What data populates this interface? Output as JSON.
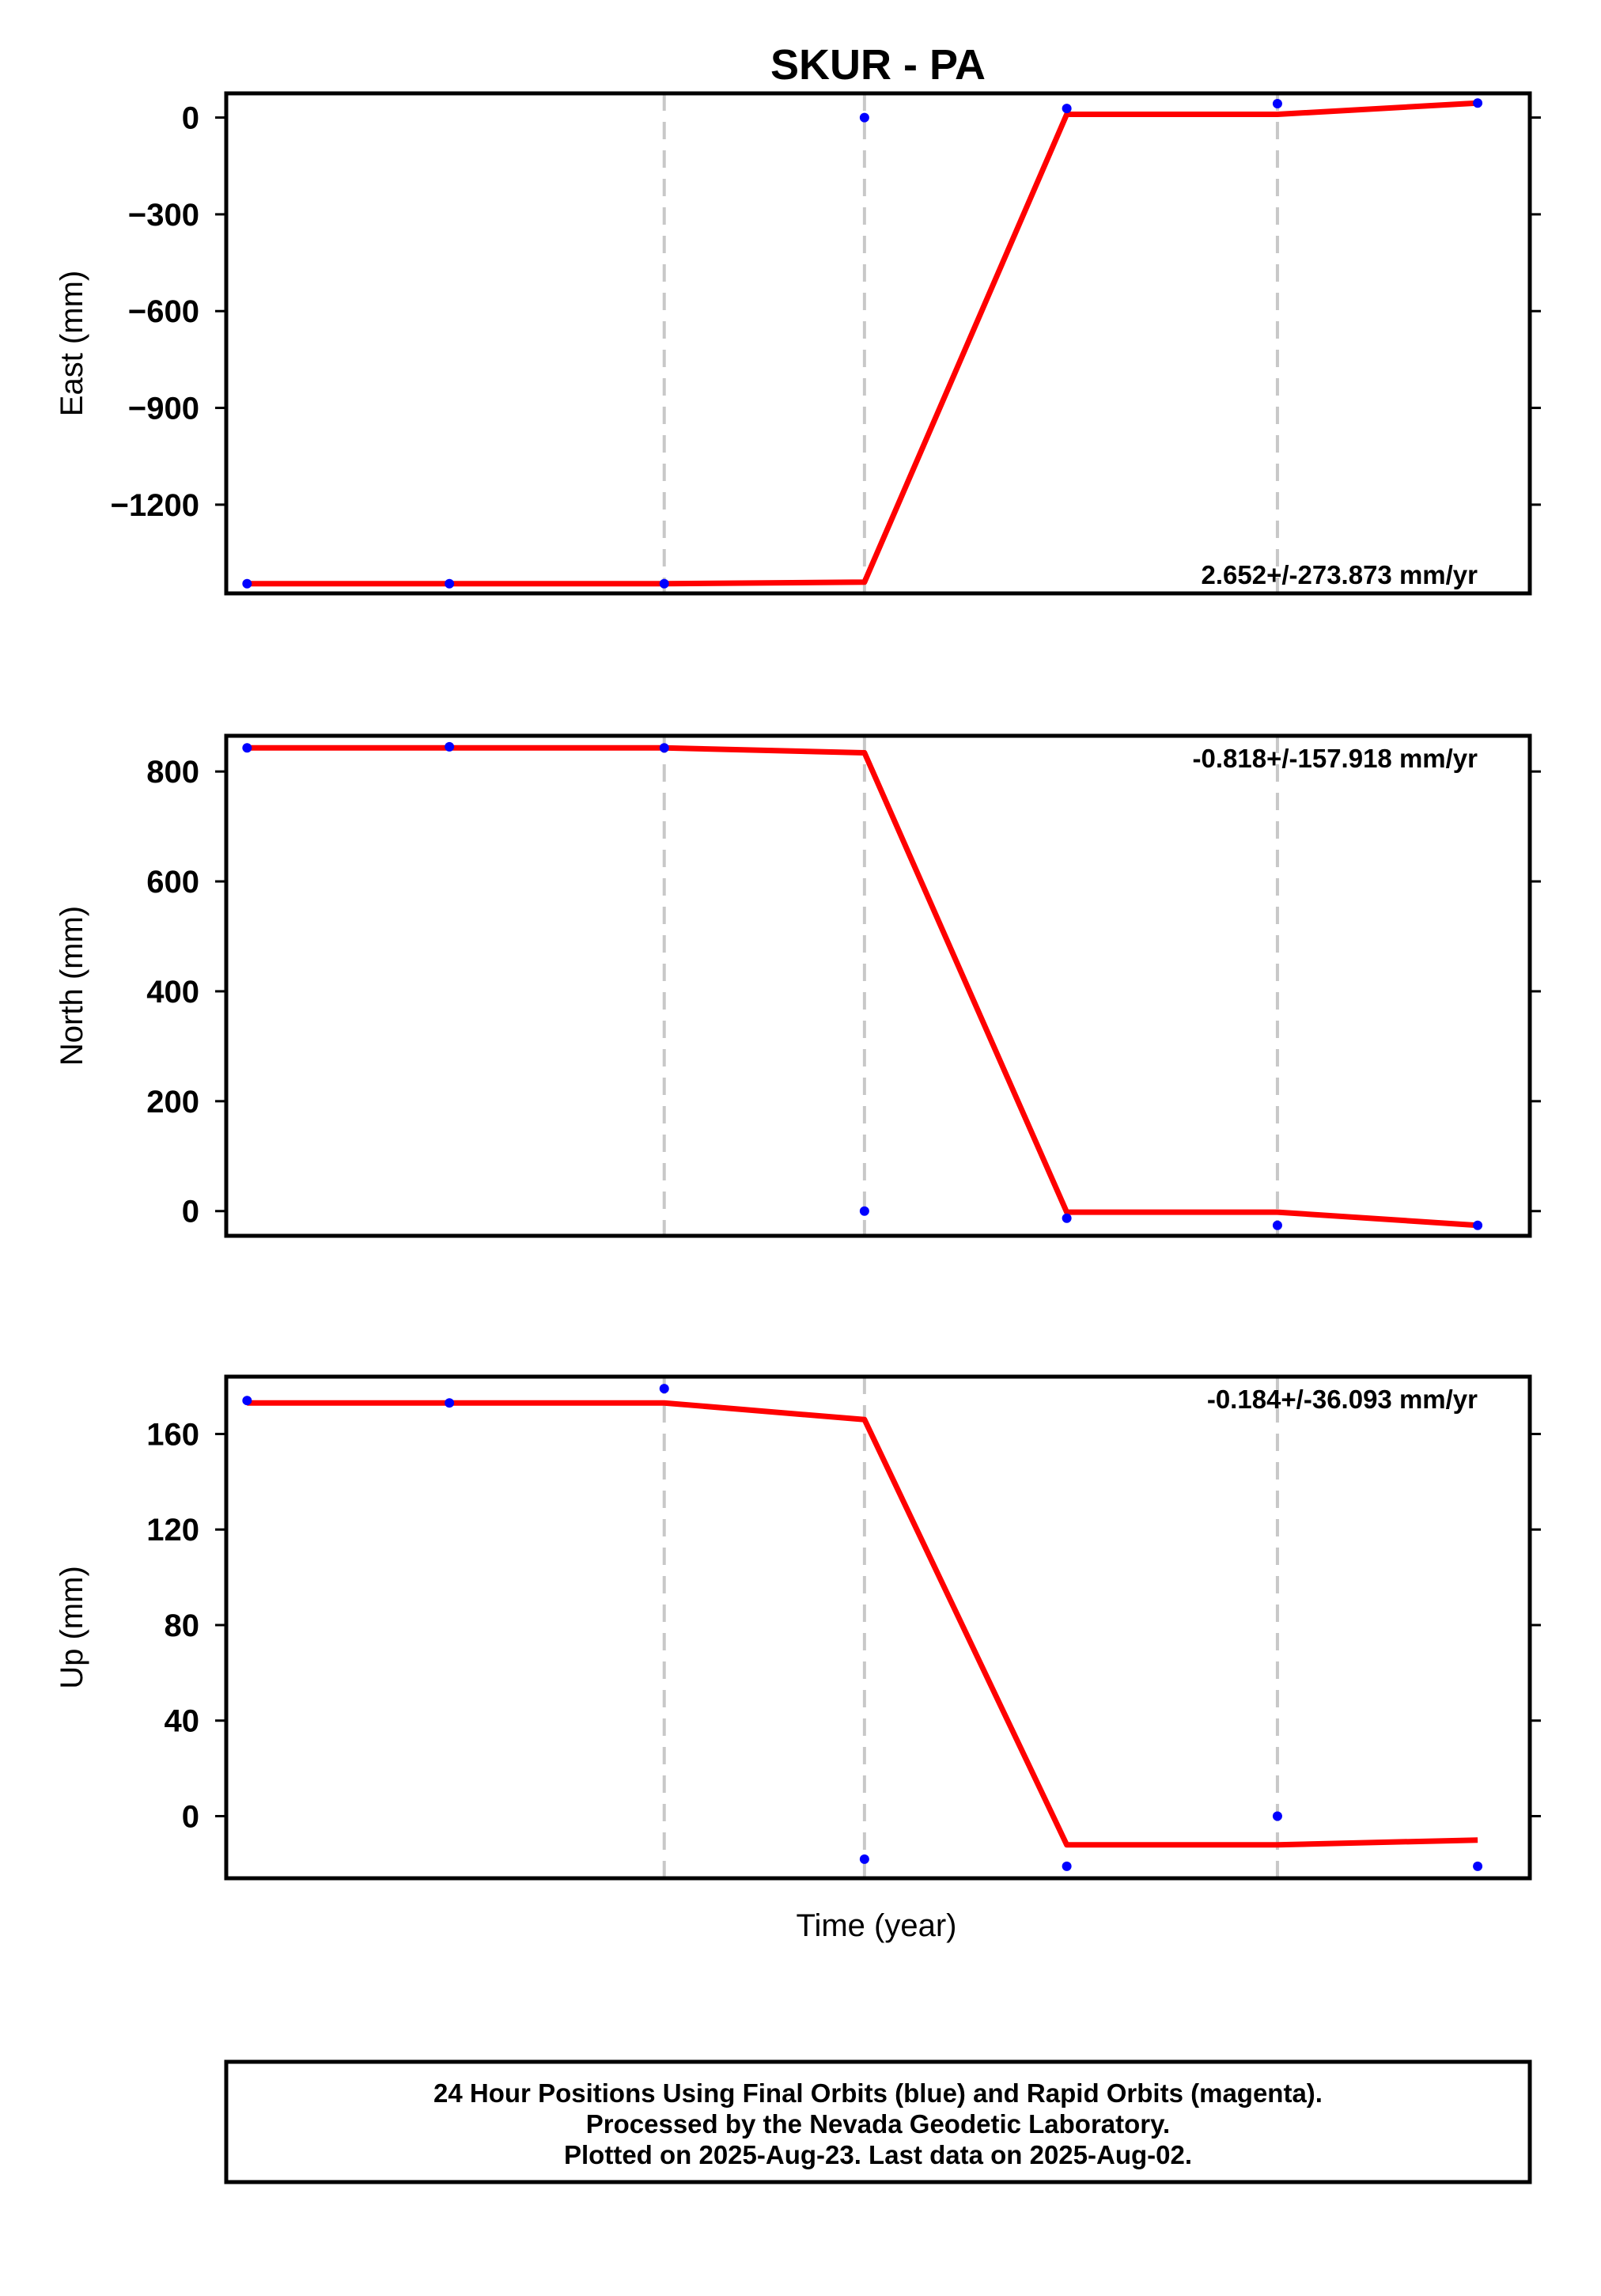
{
  "chart_data": {
    "type": "scatter",
    "title": "SKUR - PA",
    "xlabel": "Time (year)",
    "xlim": [
      0,
      6.25
    ],
    "vertical_dashed_lines_x": [
      2.1,
      3.06,
      5.04
    ],
    "grid": false,
    "panels": [
      {
        "id": "east",
        "ylabel": "East (mm)",
        "ylim": [
          -1475,
          75
        ],
        "yticks": [
          0,
          -300,
          -600,
          -900,
          -1200
        ],
        "ytick_labels": [
          "0",
          "−300",
          "−600",
          "−900",
          "−1200"
        ],
        "rate_text": "2.652+/-273.873 mm/yr",
        "rate_position": "bottom-right",
        "points": [
          [
            0.1,
            -1445
          ],
          [
            1.07,
            -1445
          ],
          [
            2.1,
            -1445
          ],
          [
            3.06,
            0
          ],
          [
            4.03,
            28
          ],
          [
            5.04,
            43
          ],
          [
            6.0,
            45
          ]
        ],
        "fit_line": [
          [
            0.1,
            -1445
          ],
          [
            2.1,
            -1445
          ],
          [
            3.06,
            -1440
          ],
          [
            4.03,
            10
          ],
          [
            5.04,
            10
          ],
          [
            6.0,
            45
          ]
        ]
      },
      {
        "id": "north",
        "ylabel": "North (mm)",
        "ylim": [
          -45,
          865
        ],
        "yticks": [
          0,
          200,
          400,
          600,
          800
        ],
        "ytick_labels": [
          "0",
          "200",
          "400",
          "600",
          "800"
        ],
        "rate_text": "-0.818+/-157.918 mm/yr",
        "rate_position": "top-right",
        "points": [
          [
            0.1,
            843
          ],
          [
            1.07,
            845
          ],
          [
            2.1,
            843
          ],
          [
            3.06,
            0
          ],
          [
            4.03,
            -13
          ],
          [
            5.04,
            -26
          ],
          [
            6.0,
            -26
          ]
        ],
        "fit_line": [
          [
            0.1,
            843
          ],
          [
            2.1,
            843
          ],
          [
            3.06,
            834
          ],
          [
            4.03,
            -2
          ],
          [
            5.04,
            -2
          ],
          [
            6.0,
            -26
          ]
        ]
      },
      {
        "id": "up",
        "ylabel": "Up (mm)",
        "ylim": [
          -26,
          184
        ],
        "yticks": [
          0,
          40,
          80,
          120,
          160
        ],
        "ytick_labels": [
          "0",
          "40",
          "80",
          "120",
          "160"
        ],
        "rate_text": "-0.184+/-36.093 mm/yr",
        "rate_position": "top-right",
        "points": [
          [
            0.1,
            174
          ],
          [
            1.07,
            173
          ],
          [
            2.1,
            179
          ],
          [
            3.06,
            -18
          ],
          [
            4.03,
            -21
          ],
          [
            5.04,
            0
          ],
          [
            6.0,
            -21
          ]
        ],
        "fit_line": [
          [
            0.1,
            173
          ],
          [
            2.1,
            173
          ],
          [
            3.06,
            166
          ],
          [
            4.03,
            -12
          ],
          [
            5.04,
            -12
          ],
          [
            6.0,
            -10
          ]
        ]
      }
    ],
    "point_color": "#0000ff",
    "line_color": "#ff0000"
  },
  "footer": {
    "line1": "24 Hour Positions Using Final Orbits (blue) and Rapid Orbits (magenta).",
    "line2": "Processed by the Nevada Geodetic Laboratory.",
    "line3": "Plotted on 2025-Aug-23. Last data on 2025-Aug-02."
  }
}
